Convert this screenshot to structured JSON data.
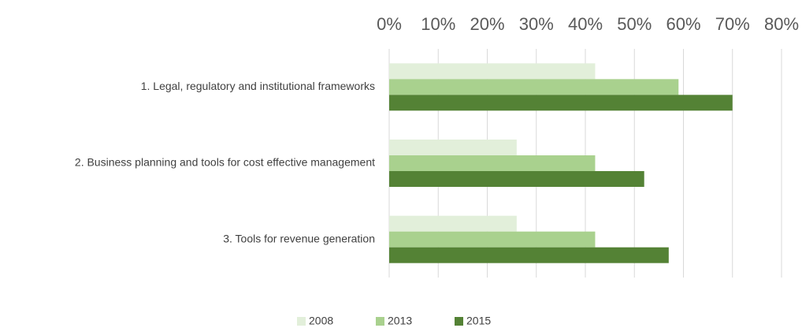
{
  "chart_data": {
    "type": "hbar",
    "categories": [
      "1. Legal, regulatory and institutional frameworks",
      "2. Business planning and tools for cost effective management",
      "3. Tools for revenue generation"
    ],
    "series": [
      {
        "name": "2008",
        "color": "#e2efda",
        "values": [
          42,
          26,
          26
        ]
      },
      {
        "name": "2013",
        "color": "#a9d18e",
        "values": [
          59,
          42,
          42
        ]
      },
      {
        "name": "2015",
        "color": "#548235",
        "values": [
          70,
          52,
          57
        ]
      }
    ],
    "xlim": [
      0,
      80
    ],
    "xticks": [
      {
        "value": 0,
        "label": "0%"
      },
      {
        "value": 10,
        "label": "10%"
      },
      {
        "value": 20,
        "label": "20%"
      },
      {
        "value": 30,
        "label": "30%"
      },
      {
        "value": 40,
        "label": "40%"
      },
      {
        "value": 50,
        "label": "50%"
      },
      {
        "value": 60,
        "label": "60%"
      },
      {
        "value": 70,
        "label": "70%"
      },
      {
        "value": 80,
        "label": "80%"
      }
    ],
    "grid": true,
    "legend": "bottom"
  }
}
